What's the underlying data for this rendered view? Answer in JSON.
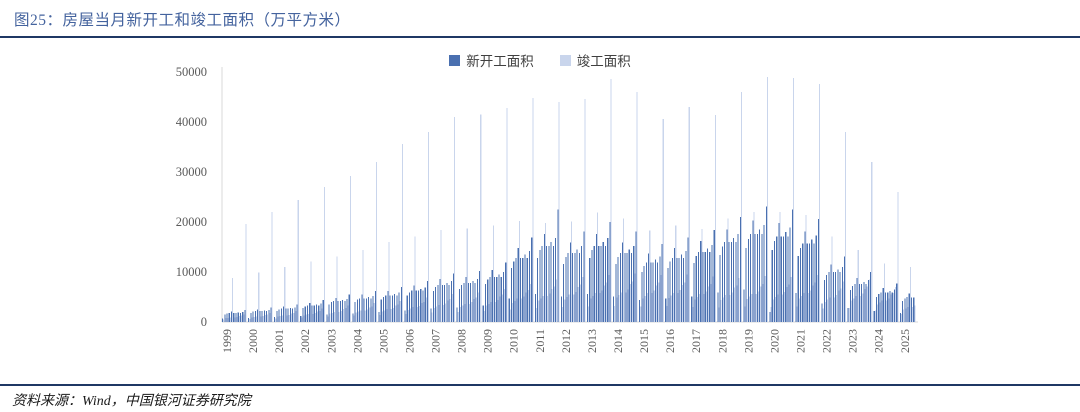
{
  "figure": {
    "title": "图25：房屋当月新开工和竣工面积（万平方米）",
    "source": "资料来源：Wind，中国银河证券研究院"
  },
  "colors": {
    "title_blue": "#44639e",
    "rule_navy": "#1f3864",
    "tick_gray": "#595959",
    "axis_line": "#d9d9d9",
    "starts_bar": "#4a70b0",
    "completions_bar": "#c9d5ec"
  },
  "chart_data": {
    "type": "bar",
    "title": "房屋当月新开工和竣工面积（万平方米）",
    "unit": "万平方米",
    "grid": false,
    "legend_position": "top-center",
    "ylim": [
      0,
      50000
    ],
    "yticks": [
      0,
      10000,
      20000,
      30000,
      40000,
      50000
    ],
    "x_years": [
      1999,
      2000,
      2001,
      2002,
      2003,
      2004,
      2005,
      2006,
      2007,
      2008,
      2009,
      2010,
      2011,
      2012,
      2013,
      2014,
      2015,
      2016,
      2017,
      2018,
      2019,
      2020,
      2021,
      2022,
      2023,
      2024,
      2025
    ],
    "months_note": "monthly bars Feb–Dec per year; 2025 partial (Feb–Aug); December completions spike each year",
    "series": [
      {
        "name": "新开工面积",
        "color": "#4a70b0",
        "values": [
          [
            670,
            1520,
            1710,
            1810,
            2090,
            1810,
            1810,
            1900,
            1810,
            2000,
            2380
          ],
          [
            810,
            1840,
            2070,
            2190,
            2530,
            2190,
            2190,
            2300,
            2190,
            2420,
            2880
          ],
          [
            980,
            2240,
            2520,
            2660,
            3080,
            2660,
            2660,
            2800,
            2660,
            2940,
            3500
          ],
          [
            1230,
            2800,
            3150,
            3330,
            3850,
            3330,
            3330,
            3500,
            3330,
            3680,
            4380
          ],
          [
            1540,
            3520,
            3960,
            4180,
            4840,
            4180,
            4180,
            4400,
            4180,
            4620,
            5500
          ],
          [
            1750,
            4000,
            4500,
            4750,
            5500,
            4750,
            4750,
            5000,
            4750,
            5250,
            6250
          ],
          [
            1960,
            4480,
            5040,
            5320,
            6160,
            5320,
            5320,
            5600,
            5320,
            5880,
            7000
          ],
          [
            2310,
            5280,
            5940,
            6270,
            7260,
            6270,
            6270,
            6600,
            6270,
            6930,
            8250
          ],
          [
            2730,
            6240,
            7020,
            7410,
            8580,
            7410,
            7410,
            7800,
            7410,
            8190,
            9750
          ],
          [
            2870,
            6560,
            7380,
            7790,
            9020,
            7790,
            7790,
            8200,
            7790,
            8610,
            10250
          ],
          [
            3330,
            7600,
            8550,
            9030,
            10450,
            9030,
            9030,
            9500,
            9030,
            9980,
            11880
          ],
          [
            4730,
            10800,
            12150,
            12830,
            14850,
            12830,
            12830,
            13500,
            12830,
            14180,
            16880
          ],
          [
            5600,
            12800,
            14400,
            15200,
            17600,
            15200,
            15200,
            16000,
            15200,
            16800,
            22500
          ],
          [
            5080,
            11600,
            13050,
            13780,
            15950,
            13780,
            13780,
            14500,
            13780,
            15230,
            18130
          ],
          [
            5600,
            12800,
            14400,
            15200,
            17600,
            15200,
            15200,
            16000,
            15200,
            16800,
            20000
          ],
          [
            5080,
            11600,
            13050,
            13780,
            15950,
            13780,
            13780,
            14500,
            13780,
            15230,
            18130
          ],
          [
            4380,
            10000,
            11250,
            11880,
            13750,
            11880,
            11880,
            12500,
            11880,
            13130,
            15630
          ],
          [
            4730,
            10800,
            12150,
            12830,
            14850,
            12830,
            12830,
            13500,
            12830,
            14180,
            16880
          ],
          [
            5150,
            11760,
            13230,
            13970,
            16170,
            13970,
            13970,
            14700,
            13970,
            15440,
            18380
          ],
          [
            5880,
            13440,
            15120,
            15960,
            18480,
            15960,
            15960,
            16800,
            15960,
            17640,
            21000
          ],
          [
            6480,
            14800,
            16650,
            17580,
            20350,
            17580,
            17580,
            18500,
            17580,
            19430,
            23130
          ],
          [
            2000,
            14400,
            16200,
            17100,
            19800,
            17100,
            17100,
            18000,
            17100,
            18900,
            22500
          ],
          [
            5780,
            13200,
            14850,
            15680,
            18150,
            15680,
            15680,
            16500,
            15680,
            17330,
            20630
          ],
          [
            3680,
            8400,
            9450,
            9980,
            11550,
            9980,
            9980,
            10500,
            9980,
            11030,
            13130
          ],
          [
            2800,
            6400,
            7200,
            7600,
            8800,
            7600,
            7600,
            8000,
            7600,
            8400,
            10000
          ],
          [
            2170,
            4960,
            5580,
            5890,
            6820,
            5890,
            5890,
            6200,
            5890,
            6510,
            7750
          ],
          [
            1800,
            4200,
            4700,
            5000,
            5700,
            4900,
            4900
          ]
        ]
      },
      {
        "name": "竣工面积",
        "color": "#c9d5ec",
        "values": [
          [
            510,
            770,
            850,
            940,
            8820,
            940,
            1020,
            1190,
            1280,
            1530,
            19600
          ],
          [
            600,
            900,
            1000,
            1100,
            9900,
            1100,
            1200,
            1400,
            1500,
            1800,
            22000
          ],
          [
            720,
            1080,
            1200,
            1320,
            10980,
            1320,
            1440,
            1680,
            1800,
            2160,
            24400
          ],
          [
            900,
            1350,
            1500,
            1650,
            12150,
            1650,
            1800,
            2100,
            2250,
            2700,
            27000
          ],
          [
            1110,
            1670,
            1850,
            2040,
            13140,
            2040,
            2220,
            2590,
            2780,
            3330,
            29200
          ],
          [
            1260,
            1890,
            2100,
            2310,
            14400,
            2310,
            2520,
            2940,
            3150,
            3780,
            32000
          ],
          [
            1410,
            2120,
            2350,
            2590,
            16020,
            2590,
            2820,
            3290,
            3530,
            4230,
            35600
          ],
          [
            1620,
            2430,
            2700,
            2970,
            17100,
            2970,
            3240,
            3780,
            4050,
            4860,
            38000
          ],
          [
            1860,
            2790,
            3100,
            3410,
            18450,
            3410,
            3720,
            4340,
            4650,
            5580,
            41000
          ],
          [
            1980,
            2970,
            3300,
            3630,
            18680,
            3630,
            3960,
            4620,
            4950,
            5940,
            41500
          ],
          [
            2190,
            3290,
            3650,
            4020,
            19260,
            4020,
            4380,
            5110,
            5480,
            6570,
            42800
          ],
          [
            2550,
            3830,
            4250,
            4680,
            20160,
            4680,
            5100,
            5950,
            6380,
            7650,
            44800
          ],
          [
            2850,
            4280,
            4750,
            5230,
            19800,
            5230,
            5700,
            6650,
            7130,
            8550,
            44000
          ],
          [
            3000,
            4500,
            5000,
            5500,
            20070,
            5500,
            6000,
            7000,
            7500,
            9000,
            44600
          ],
          [
            3150,
            4730,
            5250,
            5780,
            21870,
            5780,
            6300,
            7350,
            7880,
            9450,
            48600
          ],
          [
            3240,
            4860,
            5400,
            5940,
            20700,
            5940,
            6480,
            7560,
            8100,
            9720,
            46000
          ],
          [
            3150,
            4730,
            5250,
            5780,
            18270,
            5780,
            6300,
            7350,
            7880,
            9450,
            40600
          ],
          [
            3180,
            4770,
            5300,
            5830,
            19350,
            5830,
            6360,
            7420,
            7950,
            9540,
            43000
          ],
          [
            3030,
            4550,
            5050,
            5560,
            18630,
            5560,
            6060,
            7070,
            7580,
            9090,
            41400
          ],
          [
            2940,
            4410,
            4900,
            5390,
            20700,
            5390,
            5880,
            6860,
            7350,
            8820,
            46000
          ],
          [
            3060,
            4590,
            5100,
            5610,
            22050,
            5610,
            6120,
            7140,
            7650,
            9180,
            49000
          ],
          [
            3000,
            4500,
            5000,
            5500,
            21960,
            5500,
            6000,
            7000,
            7500,
            9000,
            48800
          ],
          [
            3150,
            4730,
            5250,
            5780,
            21420,
            5780,
            6300,
            7350,
            7880,
            9450,
            47600
          ],
          [
            2700,
            4050,
            4500,
            4950,
            17100,
            4950,
            5400,
            6300,
            6750,
            8100,
            38000
          ],
          [
            2850,
            4280,
            4750,
            5230,
            14400,
            5230,
            5700,
            6650,
            7130,
            8550,
            32000
          ],
          [
            2340,
            3510,
            3900,
            4290,
            11700,
            4290,
            4680,
            5460,
            5850,
            7020,
            26000
          ],
          [
            1650,
            2480,
            2750,
            3030,
            11000,
            3030,
            3300
          ]
        ]
      }
    ]
  }
}
